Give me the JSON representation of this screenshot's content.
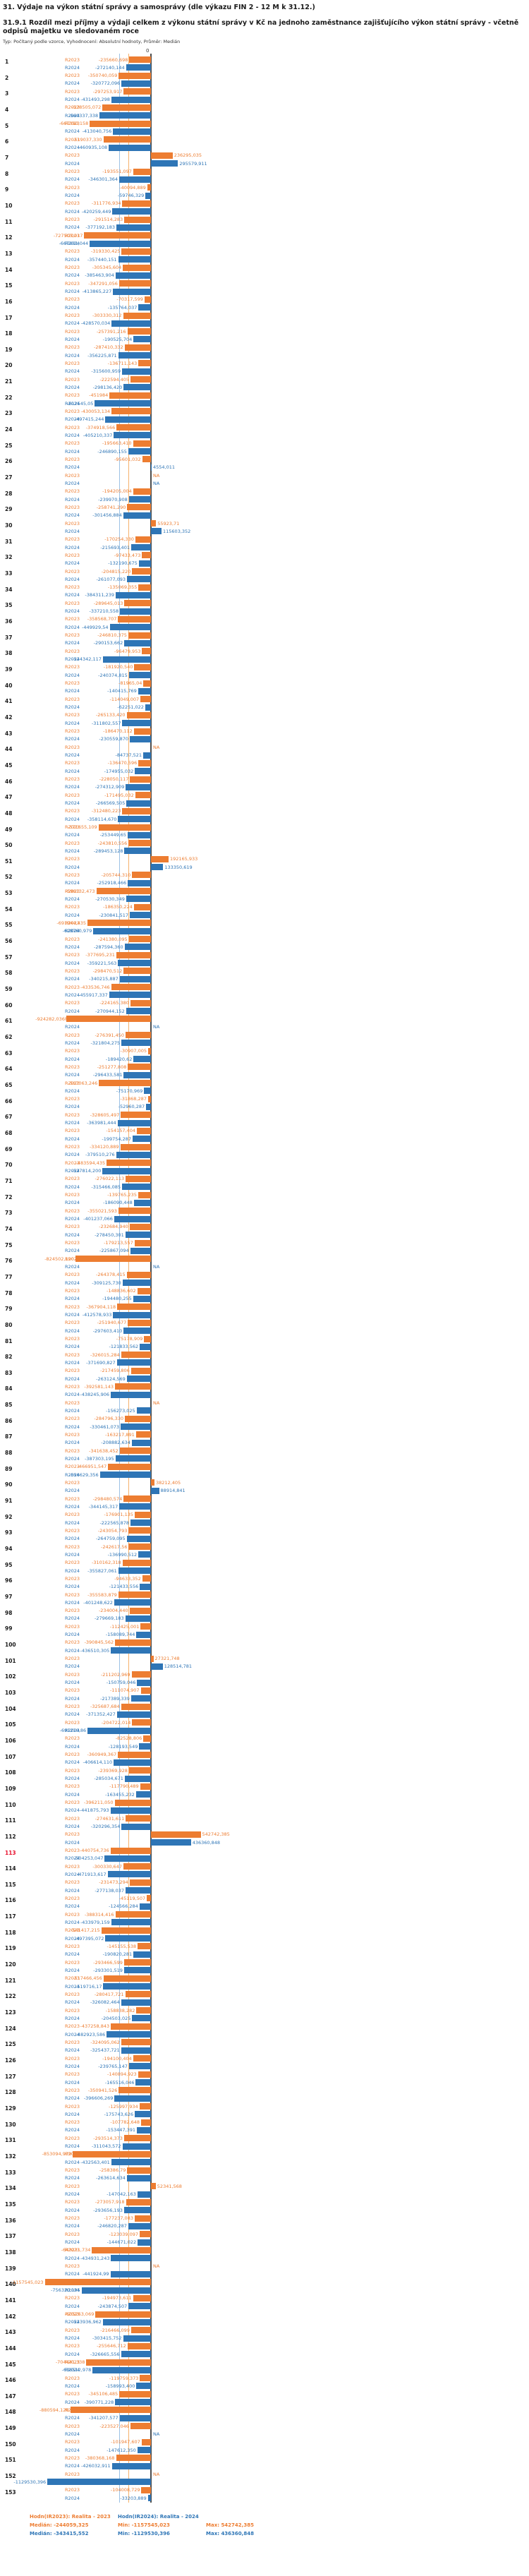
{
  "header": {
    "title": "31. Výdaje na výkon státní správy a samosprávy (dle výkazu FIN 2 - 12 M k 31.12.)",
    "subtitle": "31.9.1 Rozdíl mezi příjmy a výdaji celkem z výkonu státní správy v Kč na jednoho zaměstnance zajišťujícího výkon státní správy - včetně odpisů majetku ve sledovaném roce",
    "meta": "Typ: Počítaný podle vzorce, Vyhodnocení: Absolutní hodnoty, Průměr: Medián"
  },
  "colors": {
    "orange": "#ed7d31",
    "blue": "#2e75b6",
    "red_row_number": "#e8112d",
    "axis": "#4d4d4d"
  },
  "footer": {
    "h2023": "Hodn(IR2023): Realita - 2023",
    "h2024": "Hodn(IR2024): Realita - 2024",
    "median2023": "Medián: -244059,325",
    "min2023": "Min: -1157545,023",
    "max2023": "Max: 542742,385",
    "median2024": "Medián: -343415,552",
    "min2024": "Min: -1129530,396",
    "max2024": "Max: 436360,848"
  },
  "chart_data": {
    "type": "bar",
    "orientation": "horizontal",
    "zero_label": "0",
    "title": "31.9.1 Rozdíl mezi příjmy a výdaji celkem z výkonu státní správy v Kč na jednoho zaměstnance zajišťujícího výkon státní správy - včetně odpisů majetku ve sledovaném roce",
    "xmin": -1157545.023,
    "xmax": 542742.385,
    "series": [
      {
        "name": "R2023",
        "color": "#ed7d31",
        "median": -244059.325,
        "min": -1157545.023,
        "max": 542742.385
      },
      {
        "name": "R2024",
        "color": "#2e75b6",
        "median": -343415.552,
        "min": -1129530.396,
        "max": 436360.848
      }
    ],
    "na_text": "NA",
    "rows": [
      {
        "n": 1,
        "a": "-235660,698",
        "b": "-272140,144"
      },
      {
        "n": 2,
        "a": "-350740,059",
        "b": "-320772,096"
      },
      {
        "n": 3,
        "a": "-297253,917",
        "b": "-431493,298"
      },
      {
        "n": 4,
        "a": "-528505,072",
        "b": "-560337,338"
      },
      {
        "n": 5,
        "a": "-667390,158",
        "b": "-413040,756"
      },
      {
        "n": 6,
        "a": "-519037,330",
        "b": "-460935,108"
      },
      {
        "n": 7,
        "a": "236295,035",
        "b": "295579,911"
      },
      {
        "n": 8,
        "a": "-193551,097",
        "b": "-346301,364"
      },
      {
        "n": 9,
        "a": "-40094,889",
        "b": "-59746,329"
      },
      {
        "n": 10,
        "a": "-311776,934",
        "b": "-420259,449"
      },
      {
        "n": 11,
        "a": "-291514,283",
        "b": "-377192,183"
      },
      {
        "n": 12,
        "a": "-727503,017",
        "b": "-667801,044"
      },
      {
        "n": 13,
        "a": "-319330,425",
        "b": "-357440,151"
      },
      {
        "n": 14,
        "a": "-305345,604",
        "b": "-385463,904"
      },
      {
        "n": 15,
        "a": "-347291,056",
        "b": "-413865,227"
      },
      {
        "n": 16,
        "a": "-70317,599",
        "b": "-135764,037"
      },
      {
        "n": 17,
        "a": "-303330,312",
        "b": "-428570,034"
      },
      {
        "n": 18,
        "a": "-257391,216",
        "b": "-190525,704"
      },
      {
        "n": 19,
        "a": "-287410,332",
        "b": "-356225,871"
      },
      {
        "n": 20,
        "a": "-136711,143",
        "b": "-315600,959"
      },
      {
        "n": 21,
        "a": "-222594,405",
        "b": "-298136,420"
      },
      {
        "n": 22,
        "a": "-451984",
        "b": "-612545,05"
      },
      {
        "n": 23,
        "a": "-430053,134",
        "b": "-497415,244"
      },
      {
        "n": 24,
        "a": "-374918,566",
        "b": "-405210,337"
      },
      {
        "n": 25,
        "a": "-195663,410",
        "b": "-246890,155"
      },
      {
        "n": 26,
        "a": "-95601,032",
        "b": "4554,011"
      },
      {
        "n": 27,
        "a": "NA",
        "b": "NA"
      },
      {
        "n": 28,
        "a": "-194205,004",
        "b": "-239970,908"
      },
      {
        "n": 29,
        "a": "-258741,290",
        "b": "-301456,884"
      },
      {
        "n": 30,
        "a": "55923,71",
        "b": "115603,352"
      },
      {
        "n": 31,
        "a": "-170254,330",
        "b": "-215693,401"
      },
      {
        "n": 32,
        "a": "-97433,473",
        "b": "-132190,675"
      },
      {
        "n": 33,
        "a": "-204815,220",
        "b": "-261077,093"
      },
      {
        "n": 34,
        "a": "-135069,355",
        "b": "-384311,239"
      },
      {
        "n": 35,
        "a": "-289645,013",
        "b": "-337210,558"
      },
      {
        "n": 36,
        "a": "-358568,707",
        "b": "-449929,54"
      },
      {
        "n": 37,
        "a": "-246810,375",
        "b": "-290153,662"
      },
      {
        "n": 38,
        "a": "-96479,953",
        "b": "-524342,117"
      },
      {
        "n": 39,
        "a": "-181920,540",
        "b": "-240374,815"
      },
      {
        "n": 40,
        "a": "-81965,04",
        "b": "-140415,769"
      },
      {
        "n": 41,
        "a": "-114049,007",
        "b": "-62251,022"
      },
      {
        "n": 42,
        "a": "-265133,420",
        "b": "-311802,557"
      },
      {
        "n": 43,
        "a": "-186470,112",
        "b": "-230559,870"
      },
      {
        "n": 44,
        "a": "NA",
        "b": "-84737,521"
      },
      {
        "n": 45,
        "a": "-136470,596",
        "b": "-174955,032"
      },
      {
        "n": 46,
        "a": "-228050,117",
        "b": "-274312,909"
      },
      {
        "n": 47,
        "a": "-171495,032",
        "b": "-266569,505"
      },
      {
        "n": 48,
        "a": "-312480,223",
        "b": "-358114,670"
      },
      {
        "n": 49,
        "a": "-571655,109",
        "b": "-253449,65"
      },
      {
        "n": 50,
        "a": "-243810,556",
        "b": "-289453,128"
      },
      {
        "n": 51,
        "a": "192165,933",
        "b": "133350,619"
      },
      {
        "n": 52,
        "a": "-205744,310",
        "b": "-252918,466"
      },
      {
        "n": 53,
        "a": "-596132,473",
        "b": "-270530,349"
      },
      {
        "n": 54,
        "a": "-186350,224",
        "b": "-230841,517"
      },
      {
        "n": 55,
        "a": "-691944,435",
        "b": "-628760,979"
      },
      {
        "n": 56,
        "a": "-241380,095",
        "b": "-287594,360"
      },
      {
        "n": 57,
        "a": "-377695,231",
        "b": "-359221,563"
      },
      {
        "n": 58,
        "a": "-298470,512",
        "b": "-340215,887"
      },
      {
        "n": 59,
        "a": "-433536,746",
        "b": "-455917,337"
      },
      {
        "n": 60,
        "a": "-224165,380",
        "b": "-270944,152"
      },
      {
        "n": 61,
        "a": "-924282,036",
        "b": "NA"
      },
      {
        "n": 62,
        "a": "-276391,450",
        "b": "-321804,275"
      },
      {
        "n": 63,
        "a": "-30907,005",
        "b": "-189420,62"
      },
      {
        "n": 64,
        "a": "-251277,808",
        "b": "-296433,581"
      },
      {
        "n": 65,
        "a": "-567063,246",
        "b": "-75170,969"
      },
      {
        "n": 66,
        "a": "-31868,287",
        "b": "-52960,287"
      },
      {
        "n": 67,
        "a": "-328605,497",
        "b": "-363981,444"
      },
      {
        "n": 68,
        "a": "-154157,404",
        "b": "-199754,287"
      },
      {
        "n": 69,
        "a": "-334120,889",
        "b": "-379510,276"
      },
      {
        "n": 70,
        "a": "-483594,435",
        "b": "-527814,200"
      },
      {
        "n": 71,
        "a": "-276022,113",
        "b": "-315466,085"
      },
      {
        "n": 72,
        "a": "-139765,235",
        "b": "-186090,448"
      },
      {
        "n": 73,
        "a": "-355021,593",
        "b": "-401237,066"
      },
      {
        "n": 74,
        "a": "-232684,940",
        "b": "-278450,301"
      },
      {
        "n": 75,
        "a": "-179213,557",
        "b": "-225867,094"
      },
      {
        "n": 76,
        "a": "-824502,190",
        "b": "NA"
      },
      {
        "n": 77,
        "a": "-264378,415",
        "b": "-309125,730"
      },
      {
        "n": 78,
        "a": "-148836,602",
        "b": "-194480,255"
      },
      {
        "n": 79,
        "a": "-367904,118",
        "b": "-412578,933"
      },
      {
        "n": 80,
        "a": "-251940,677",
        "b": "-297603,410"
      },
      {
        "n": 81,
        "a": "-75178,909",
        "b": "-121833,562"
      },
      {
        "n": 82,
        "a": "-326015,284",
        "b": "-371690,827"
      },
      {
        "n": 83,
        "a": "-217459,806",
        "b": "-263124,569"
      },
      {
        "n": 84,
        "a": "-392581,143",
        "b": "-438245,906"
      },
      {
        "n": 85,
        "a": "NA",
        "b": "-156273,025"
      },
      {
        "n": 86,
        "a": "-284796,330",
        "b": "-330461,073"
      },
      {
        "n": 87,
        "a": "-163217,891",
        "b": "-208882,634"
      },
      {
        "n": 88,
        "a": "-341638,452",
        "b": "-387303,195"
      },
      {
        "n": 89,
        "a": "-466951,547",
        "b": "-556629,356"
      },
      {
        "n": 90,
        "a": "38212,405",
        "b": "88914,841"
      },
      {
        "n": 91,
        "a": "-298480,574",
        "b": "-344145,317"
      },
      {
        "n": 92,
        "a": "-176901,135",
        "b": "-222565,878"
      },
      {
        "n": 93,
        "a": "-243054,793",
        "b": "-264759,095"
      },
      {
        "n": 94,
        "a": "-242617,56",
        "b": "-136990,512"
      },
      {
        "n": 95,
        "a": "-310162,318",
        "b": "-355827,061"
      },
      {
        "n": 96,
        "a": "-94633,352",
        "b": "-121433,556"
      },
      {
        "n": 97,
        "a": "-355583,879",
        "b": "-401248,622"
      },
      {
        "n": 98,
        "a": "-234004,440",
        "b": "-279669,183"
      },
      {
        "n": 99,
        "a": "-112425,001",
        "b": "-158089,744"
      },
      {
        "n": 100,
        "a": "-390845,562",
        "b": "-436510,305"
      },
      {
        "n": 101,
        "a": "27321,748",
        "b": "128514,781"
      },
      {
        "n": 102,
        "a": "-211202,969",
        "b": "-150759,046"
      },
      {
        "n": 103,
        "a": "-111074,907",
        "b": "-217389,339"
      },
      {
        "n": 104,
        "a": "-325687,684",
        "b": "-371352,427"
      },
      {
        "n": 105,
        "a": "-204722,014",
        "b": "-691210,86"
      },
      {
        "n": 106,
        "a": "-82528,806",
        "b": "-128193,549"
      },
      {
        "n": 107,
        "a": "-360949,367",
        "b": "-406614,110"
      },
      {
        "n": 108,
        "a": "-239369,928",
        "b": "-285034,671"
      },
      {
        "n": 109,
        "a": "-117790,489",
        "b": "-163455,232"
      },
      {
        "n": 110,
        "a": "-396211,050",
        "b": "-441875,793"
      },
      {
        "n": 111,
        "a": "-274631,611",
        "b": "-320296,354"
      },
      {
        "n": 112,
        "a": "542742,385",
        "b": "436360,848"
      },
      {
        "n": 113,
        "a": "-440754,736",
        "b": "-504253,047",
        "red": true
      },
      {
        "n": 114,
        "a": "-300330,647",
        "b": "-471913,617"
      },
      {
        "n": 115,
        "a": "-231473,294",
        "b": "-277138,037"
      },
      {
        "n": 116,
        "a": "-45119,507",
        "b": "-124566,284"
      },
      {
        "n": 117,
        "a": "-388314,416",
        "b": "-433979,159"
      },
      {
        "n": 118,
        "a": "-541417,215",
        "b": "-497395,072"
      },
      {
        "n": 119,
        "a": "-145155,538",
        "b": "-190820,281"
      },
      {
        "n": 120,
        "a": "-293466,599",
        "b": "-293301,519"
      },
      {
        "n": 121,
        "a": "-517466,456",
        "b": "-519716,17"
      },
      {
        "n": 122,
        "a": "-280417,721",
        "b": "-326082,464"
      },
      {
        "n": 123,
        "a": "-158838,282",
        "b": "-204503,025"
      },
      {
        "n": 124,
        "a": "-437258,843",
        "b": "-482923,586"
      },
      {
        "n": 125,
        "a": "-324095,062",
        "b": "-325437,721"
      },
      {
        "n": 126,
        "a": "-194100,404",
        "b": "-239765,147"
      },
      {
        "n": 127,
        "a": "-140894,923",
        "b": "-165516,046"
      },
      {
        "n": 128,
        "a": "-350941,526",
        "b": "-396606,269"
      },
      {
        "n": 129,
        "a": "-125997,934",
        "b": "-175743,626"
      },
      {
        "n": 130,
        "a": "-107782,648",
        "b": "-153447,391"
      },
      {
        "n": 131,
        "a": "-293514,373",
        "b": "-311043,572"
      },
      {
        "n": 132,
        "a": "-853094,979",
        "b": "-432563,401"
      },
      {
        "n": 133,
        "a": "-258386,79",
        "b": "-263614,634"
      },
      {
        "n": 134,
        "a": "52341,568",
        "b": "-147042,163"
      },
      {
        "n": 135,
        "a": "-273057,918",
        "b": "-293656,193"
      },
      {
        "n": 136,
        "a": "-177237,083",
        "b": "-246820,287"
      },
      {
        "n": 137,
        "a": "-123039,097",
        "b": "-144671,022"
      },
      {
        "n": 138,
        "a": "-643231,734",
        "b": "-434931,243"
      },
      {
        "n": 139,
        "a": "NA",
        "b": "-441924,99"
      },
      {
        "n": 140,
        "a": "-1157545,023",
        "b": "-756320,195"
      },
      {
        "n": 141,
        "a": "-194973,611",
        "b": "-243874,507"
      },
      {
        "n": 142,
        "a": "-605263,069",
        "b": "-523936,962"
      },
      {
        "n": 143,
        "a": "-216466,099",
        "b": "-303415,752"
      },
      {
        "n": 144,
        "a": "-255646,712",
        "b": "-326665,556"
      },
      {
        "n": 145,
        "a": "-704441,338",
        "b": "-636512,978"
      },
      {
        "n": 146,
        "a": "-119759,373",
        "b": "-158993,400"
      },
      {
        "n": 147,
        "a": "-345106,485",
        "b": "-390771,228"
      },
      {
        "n": 148,
        "a": "-880594,120",
        "b": "-341207,577"
      },
      {
        "n": 149,
        "a": "-223527,046",
        "b": "NA"
      },
      {
        "n": 150,
        "a": "-101947,607",
        "b": "-147612,350"
      },
      {
        "n": 151,
        "a": "-380368,168",
        "b": "-426032,911"
      },
      {
        "n": 152,
        "a": "NA",
        "b": "-1129530,396"
      },
      {
        "n": 153,
        "a": "-104008,729",
        "b": "-33203,889"
      }
    ]
  }
}
